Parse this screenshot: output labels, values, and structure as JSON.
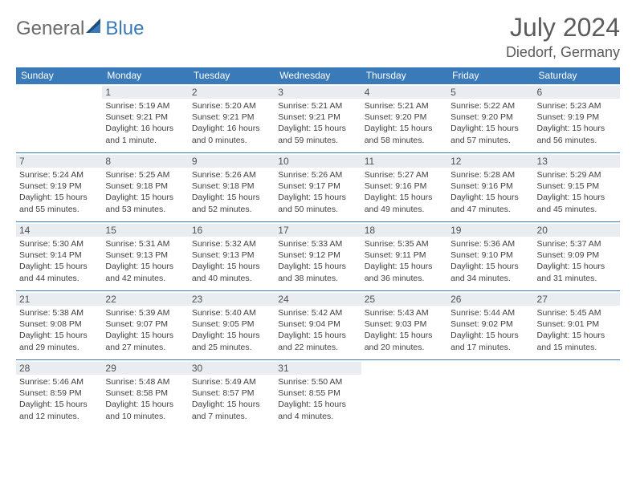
{
  "brand": {
    "part1": "General",
    "part2": "Blue"
  },
  "title": {
    "month_year": "July 2024",
    "location": "Diedorf, Germany"
  },
  "calendar": {
    "headers": [
      "Sunday",
      "Monday",
      "Tuesday",
      "Wednesday",
      "Thursday",
      "Friday",
      "Saturday"
    ],
    "colors": {
      "header_bg": "#3a7ab8",
      "header_fg": "#ffffff",
      "row_divider": "#3a7ab8",
      "daynum_bg": "#e9edf1",
      "text": "#404040",
      "brand_gray": "#6b6b6b",
      "brand_blue": "#3a7ab8",
      "page_bg": "#ffffff"
    },
    "first_weekday_offset": 1,
    "days": [
      {
        "n": 1,
        "sunrise": "5:19 AM",
        "sunset": "9:21 PM",
        "daylight": "16 hours and 1 minute."
      },
      {
        "n": 2,
        "sunrise": "5:20 AM",
        "sunset": "9:21 PM",
        "daylight": "16 hours and 0 minutes."
      },
      {
        "n": 3,
        "sunrise": "5:21 AM",
        "sunset": "9:21 PM",
        "daylight": "15 hours and 59 minutes."
      },
      {
        "n": 4,
        "sunrise": "5:21 AM",
        "sunset": "9:20 PM",
        "daylight": "15 hours and 58 minutes."
      },
      {
        "n": 5,
        "sunrise": "5:22 AM",
        "sunset": "9:20 PM",
        "daylight": "15 hours and 57 minutes."
      },
      {
        "n": 6,
        "sunrise": "5:23 AM",
        "sunset": "9:19 PM",
        "daylight": "15 hours and 56 minutes."
      },
      {
        "n": 7,
        "sunrise": "5:24 AM",
        "sunset": "9:19 PM",
        "daylight": "15 hours and 55 minutes."
      },
      {
        "n": 8,
        "sunrise": "5:25 AM",
        "sunset": "9:18 PM",
        "daylight": "15 hours and 53 minutes."
      },
      {
        "n": 9,
        "sunrise": "5:26 AM",
        "sunset": "9:18 PM",
        "daylight": "15 hours and 52 minutes."
      },
      {
        "n": 10,
        "sunrise": "5:26 AM",
        "sunset": "9:17 PM",
        "daylight": "15 hours and 50 minutes."
      },
      {
        "n": 11,
        "sunrise": "5:27 AM",
        "sunset": "9:16 PM",
        "daylight": "15 hours and 49 minutes."
      },
      {
        "n": 12,
        "sunrise": "5:28 AM",
        "sunset": "9:16 PM",
        "daylight": "15 hours and 47 minutes."
      },
      {
        "n": 13,
        "sunrise": "5:29 AM",
        "sunset": "9:15 PM",
        "daylight": "15 hours and 45 minutes."
      },
      {
        "n": 14,
        "sunrise": "5:30 AM",
        "sunset": "9:14 PM",
        "daylight": "15 hours and 44 minutes."
      },
      {
        "n": 15,
        "sunrise": "5:31 AM",
        "sunset": "9:13 PM",
        "daylight": "15 hours and 42 minutes."
      },
      {
        "n": 16,
        "sunrise": "5:32 AM",
        "sunset": "9:13 PM",
        "daylight": "15 hours and 40 minutes."
      },
      {
        "n": 17,
        "sunrise": "5:33 AM",
        "sunset": "9:12 PM",
        "daylight": "15 hours and 38 minutes."
      },
      {
        "n": 18,
        "sunrise": "5:35 AM",
        "sunset": "9:11 PM",
        "daylight": "15 hours and 36 minutes."
      },
      {
        "n": 19,
        "sunrise": "5:36 AM",
        "sunset": "9:10 PM",
        "daylight": "15 hours and 34 minutes."
      },
      {
        "n": 20,
        "sunrise": "5:37 AM",
        "sunset": "9:09 PM",
        "daylight": "15 hours and 31 minutes."
      },
      {
        "n": 21,
        "sunrise": "5:38 AM",
        "sunset": "9:08 PM",
        "daylight": "15 hours and 29 minutes."
      },
      {
        "n": 22,
        "sunrise": "5:39 AM",
        "sunset": "9:07 PM",
        "daylight": "15 hours and 27 minutes."
      },
      {
        "n": 23,
        "sunrise": "5:40 AM",
        "sunset": "9:05 PM",
        "daylight": "15 hours and 25 minutes."
      },
      {
        "n": 24,
        "sunrise": "5:42 AM",
        "sunset": "9:04 PM",
        "daylight": "15 hours and 22 minutes."
      },
      {
        "n": 25,
        "sunrise": "5:43 AM",
        "sunset": "9:03 PM",
        "daylight": "15 hours and 20 minutes."
      },
      {
        "n": 26,
        "sunrise": "5:44 AM",
        "sunset": "9:02 PM",
        "daylight": "15 hours and 17 minutes."
      },
      {
        "n": 27,
        "sunrise": "5:45 AM",
        "sunset": "9:01 PM",
        "daylight": "15 hours and 15 minutes."
      },
      {
        "n": 28,
        "sunrise": "5:46 AM",
        "sunset": "8:59 PM",
        "daylight": "15 hours and 12 minutes."
      },
      {
        "n": 29,
        "sunrise": "5:48 AM",
        "sunset": "8:58 PM",
        "daylight": "15 hours and 10 minutes."
      },
      {
        "n": 30,
        "sunrise": "5:49 AM",
        "sunset": "8:57 PM",
        "daylight": "15 hours and 7 minutes."
      },
      {
        "n": 31,
        "sunrise": "5:50 AM",
        "sunset": "8:55 PM",
        "daylight": "15 hours and 4 minutes."
      }
    ],
    "labels": {
      "sunrise": "Sunrise:",
      "sunset": "Sunset:",
      "daylight": "Daylight:"
    }
  }
}
